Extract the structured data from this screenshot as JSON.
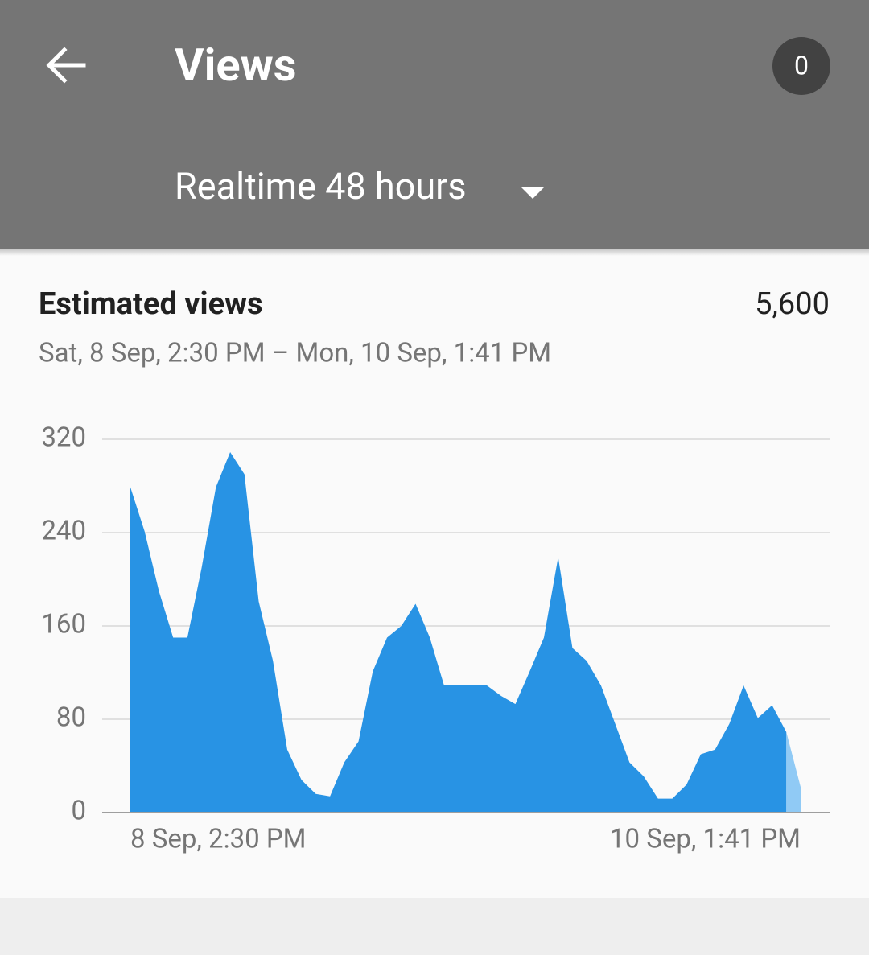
{
  "header": {
    "title": "Views",
    "badge": "0",
    "range_selector": "Realtime 48 hours"
  },
  "card": {
    "title": "Estimated views",
    "total": "5,600",
    "date_range": "Sat, 8 Sep, 2:30 PM – Mon, 10 Sep, 1:41 PM"
  },
  "chart_data": {
    "type": "area",
    "values": [
      279,
      241,
      190,
      150,
      150,
      210,
      279,
      309,
      290,
      181,
      130,
      54,
      28,
      16,
      14,
      43,
      61,
      121,
      150,
      160,
      179,
      150,
      109,
      109,
      109,
      109,
      100,
      93,
      121,
      150,
      219,
      141,
      130,
      109,
      76,
      43,
      31,
      12,
      12,
      24,
      50,
      54,
      76,
      109,
      81,
      92,
      69,
      22
    ],
    "x_labels": [
      "8 Sep, 2:30 PM",
      "10 Sep, 1:41 PM"
    ],
    "ylim": [
      0,
      320
    ],
    "yticks": [
      0,
      80,
      160,
      240,
      320
    ],
    "grid": true,
    "color": "#2893e4",
    "partial_color": "#90caf5"
  }
}
